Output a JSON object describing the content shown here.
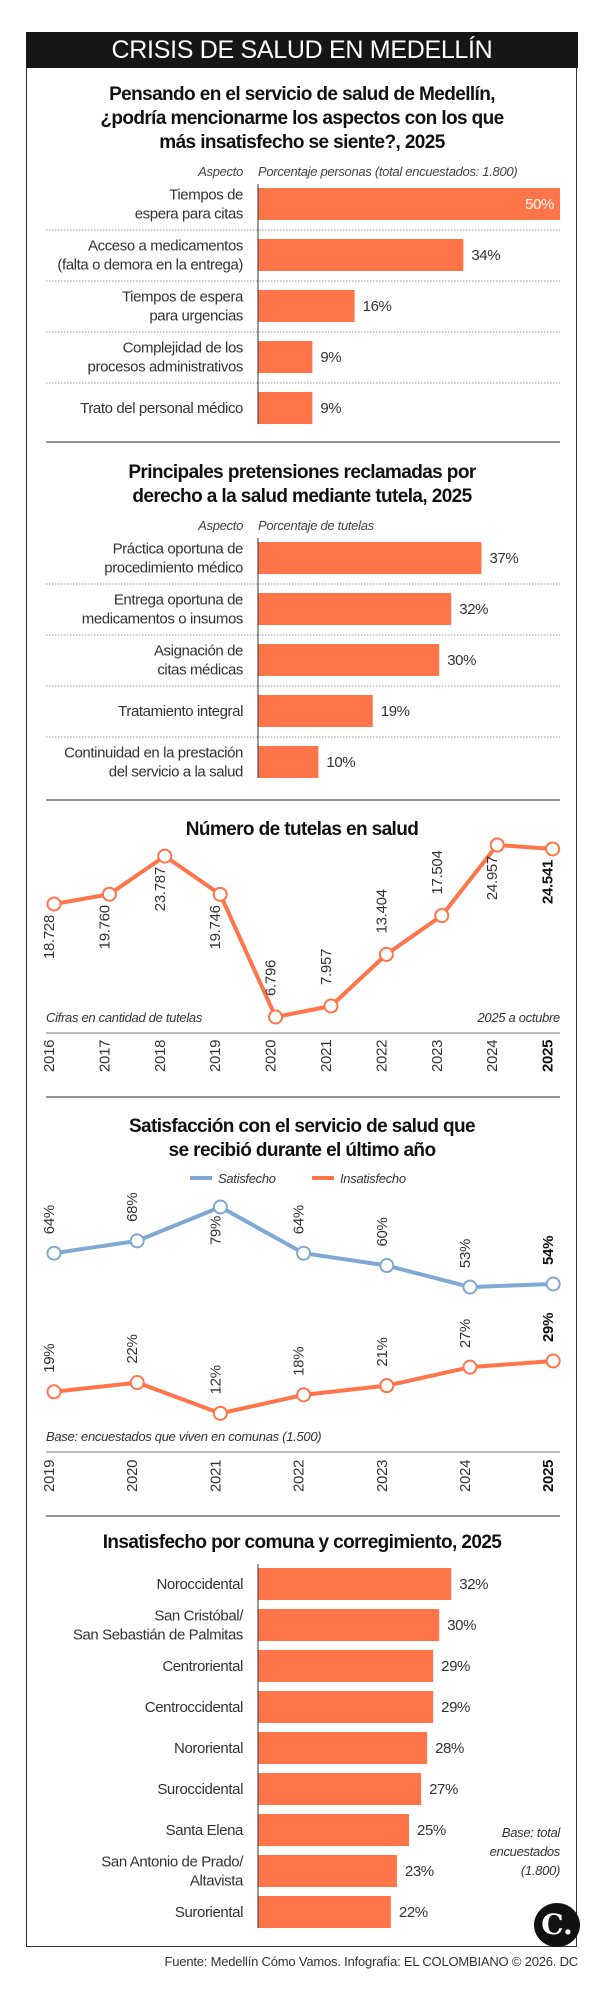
{
  "header": {
    "title": "CRISIS DE SALUD EN MEDELLÍN"
  },
  "colors": {
    "bar": "#FF7448",
    "satisfecho": "#7FA9D2",
    "insatisfecho": "#FF7448",
    "titlebar": "#161616"
  },
  "footer": {
    "source": "Fuente: Medellín Cómo Vamos. Infografía: EL COLOMBIANO © 2026. DC",
    "logo": "C."
  },
  "chart_data": [
    {
      "type": "bar",
      "title": "Pensando en el servicio de salud de Medellín, ¿podría mencionarme los aspectos con los que más insatisfecho se siente?, 2025",
      "category_header": "Aspecto",
      "value_header": "Porcentaje personas (total encuestados: 1.800)",
      "categories": [
        [
          "Tiempos de",
          "espera para citas"
        ],
        [
          "Acceso a medicamentos",
          "(falta o demora en la entrega)"
        ],
        [
          "Tiempos de espera",
          "para urgencias"
        ],
        [
          "Complejidad de los",
          "procesos administrativos"
        ],
        [
          "Trato del personal médico"
        ]
      ],
      "values": [
        50,
        34,
        16,
        9,
        9
      ],
      "labels": [
        "50%",
        "34%",
        "16%",
        "9%",
        "9%"
      ]
    },
    {
      "type": "bar",
      "title": "Principales pretensiones reclamadas por derecho a la salud mediante tutela, 2025",
      "category_header": "Aspecto",
      "value_header": "Porcentaje de tutelas",
      "categories": [
        [
          "Práctica oportuna de",
          "procedimiento médico"
        ],
        [
          "Entrega oportuna de",
          "medicamentos o insumos"
        ],
        [
          "Asignación de",
          "citas médicas"
        ],
        [
          "Tratamiento integral"
        ],
        [
          "Continuidad en la prestación",
          "del servicio a la salud"
        ]
      ],
      "values": [
        37,
        32,
        30,
        19,
        10
      ],
      "labels": [
        "37%",
        "32%",
        "30%",
        "19%",
        "10%"
      ]
    },
    {
      "type": "line",
      "title": "Número de tutelas en salud",
      "x": [
        "2016",
        "2017",
        "2018",
        "2019",
        "2020",
        "2021",
        "2022",
        "2023",
        "2024",
        "2025"
      ],
      "values": [
        18728,
        19760,
        23787,
        19746,
        6796,
        7957,
        13404,
        17504,
        24957,
        24541
      ],
      "labels": [
        "18.728",
        "19.760",
        "23.787",
        "19.746",
        "6.796",
        "7.957",
        "13.404",
        "17.504",
        "24.957",
        "24.541"
      ],
      "note_left": "Cifras en cantidad de tutelas",
      "note_right": "2025 a octubre",
      "grid": false
    },
    {
      "type": "line",
      "title": "Satisfacción con el servicio de salud que se recibió durante el último año",
      "x": [
        "2019",
        "2020",
        "2021",
        "2022",
        "2023",
        "2024",
        "2025"
      ],
      "series": [
        {
          "name": "Satisfecho",
          "values": [
            64,
            68,
            79,
            64,
            60,
            53,
            54
          ],
          "labels": [
            "64%",
            "68%",
            "79%",
            "64%",
            "60%",
            "53%",
            "54%"
          ]
        },
        {
          "name": "Insatisfecho",
          "values": [
            19,
            22,
            12,
            18,
            21,
            27,
            29
          ],
          "labels": [
            "19%",
            "22%",
            "12%",
            "18%",
            "21%",
            "27%",
            "29%"
          ]
        }
      ],
      "legend": "top-center",
      "note": "Base: encuestados que viven en comunas (1.500)",
      "grid": false
    },
    {
      "type": "bar",
      "title": "Insatisfecho por comuna y corregimiento, 2025",
      "categories": [
        [
          "Noroccidental"
        ],
        [
          "San Cristóbal/",
          "San Sebastián de Palmitas"
        ],
        [
          "Centroriental"
        ],
        [
          "Centroccidental"
        ],
        [
          "Nororiental"
        ],
        [
          "Suroccidental"
        ],
        [
          "Santa Elena"
        ],
        [
          "San Antonio de Prado/",
          "Altavista"
        ],
        [
          "Suroriental"
        ]
      ],
      "values": [
        32,
        30,
        29,
        29,
        28,
        27,
        25,
        23,
        22
      ],
      "labels": [
        "32%",
        "30%",
        "29%",
        "29%",
        "28%",
        "27%",
        "25%",
        "23%",
        "22%"
      ],
      "note": [
        "Base: total",
        "encuestados",
        "(1.800)"
      ]
    }
  ]
}
